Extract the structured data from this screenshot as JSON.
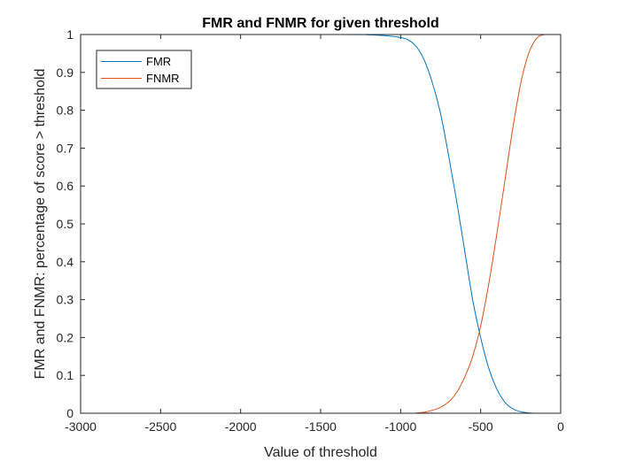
{
  "chart_data": {
    "type": "line",
    "title": "FMR and FNMR for given threshold",
    "xlabel": "Value of threshold",
    "ylabel": "FMR and FNMR: percentage of score > threshold",
    "xlim": [
      -3000,
      0
    ],
    "ylim": [
      0,
      1
    ],
    "xticks": [
      -3000,
      -2500,
      -2000,
      -1500,
      -1000,
      -500,
      0
    ],
    "xtick_labels": [
      "-3000",
      "-2500",
      "-2000",
      "-1500",
      "-1000",
      "-500",
      "0"
    ],
    "yticks": [
      0,
      0.1,
      0.2,
      0.3,
      0.4,
      0.5,
      0.6,
      0.7,
      0.8,
      0.9,
      1
    ],
    "ytick_labels": [
      "0",
      "0.1",
      "0.2",
      "0.3",
      "0.4",
      "0.5",
      "0.6",
      "0.7",
      "0.8",
      "0.9",
      "1"
    ],
    "grid": false,
    "legend_position": "top-left",
    "series": [
      {
        "name": "FMR",
        "color": "#0072BD",
        "x": [
          -3000,
          -1400,
          -1200,
          -1100,
          -1000,
          -950,
          -900,
          -850,
          -800,
          -750,
          -700,
          -650,
          -600,
          -550,
          -500,
          -450,
          -400,
          -350,
          -300,
          -250,
          -200,
          -150,
          -100,
          0
        ],
        "y": [
          1,
          1,
          0.999,
          0.997,
          0.992,
          0.985,
          0.967,
          0.93,
          0.87,
          0.79,
          0.68,
          0.56,
          0.43,
          0.3,
          0.2,
          0.12,
          0.065,
          0.03,
          0.012,
          0.004,
          0.001,
          0,
          0,
          0
        ]
      },
      {
        "name": "FNMR",
        "color": "#D95319",
        "x": [
          -3000,
          -950,
          -900,
          -850,
          -800,
          -750,
          -700,
          -650,
          -600,
          -550,
          -500,
          -450,
          -400,
          -350,
          -300,
          -250,
          -200,
          -150,
          -100,
          -50,
          0
        ],
        "y": [
          0,
          0,
          0.001,
          0.003,
          0.008,
          0.016,
          0.03,
          0.055,
          0.095,
          0.15,
          0.23,
          0.34,
          0.47,
          0.61,
          0.75,
          0.87,
          0.95,
          0.99,
          1,
          1,
          1
        ]
      }
    ]
  }
}
